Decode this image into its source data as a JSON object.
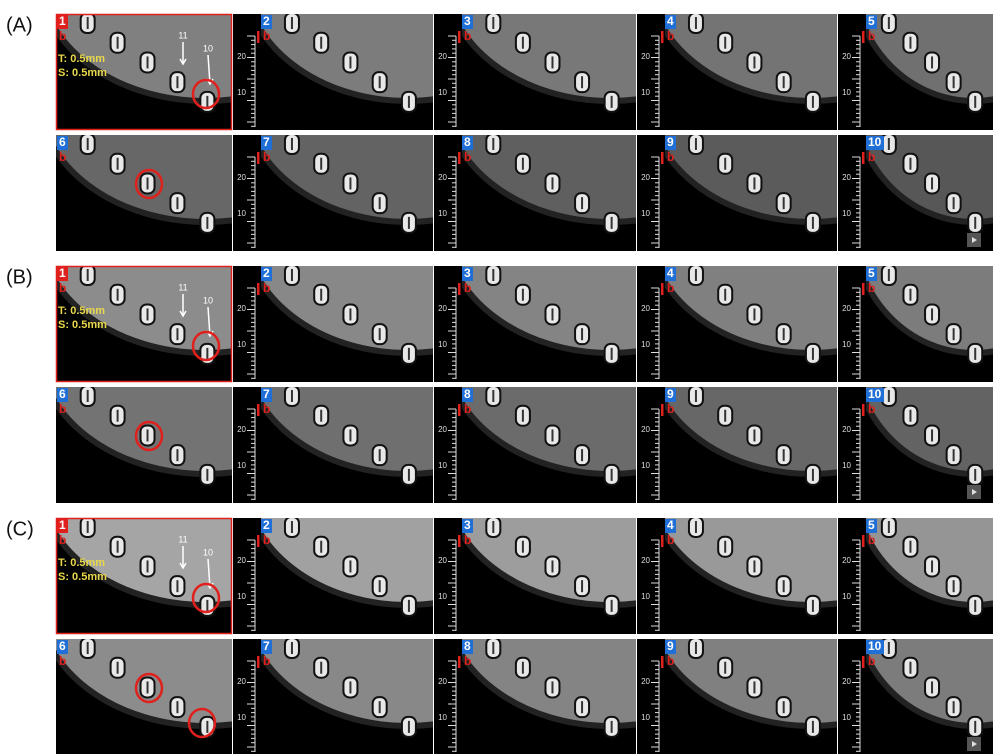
{
  "groups": [
    {
      "label": "(A)",
      "panels": [
        {
          "number": "1",
          "tag": "b",
          "thickness": "T: 0.5mm",
          "spacing": "S: 0.5mm",
          "arrows": [
            "11",
            "10"
          ]
        },
        {
          "number": "2",
          "tag": "b"
        },
        {
          "number": "3",
          "tag": "b"
        },
        {
          "number": "4",
          "tag": "b"
        },
        {
          "number": "5",
          "tag": "b"
        },
        {
          "number": "6",
          "tag": "b"
        },
        {
          "number": "7",
          "tag": "b"
        },
        {
          "number": "8",
          "tag": "b"
        },
        {
          "number": "9",
          "tag": "b"
        },
        {
          "number": "10",
          "tag": "b"
        }
      ]
    },
    {
      "label": "(B)",
      "panels": [
        {
          "number": "1",
          "tag": "b",
          "thickness": "T: 0.5mm",
          "spacing": "S: 0.5mm",
          "arrows": [
            "11",
            "10"
          ]
        },
        {
          "number": "2",
          "tag": "b"
        },
        {
          "number": "3",
          "tag": "b"
        },
        {
          "number": "4",
          "tag": "b"
        },
        {
          "number": "5",
          "tag": "b"
        },
        {
          "number": "6",
          "tag": "b"
        },
        {
          "number": "7",
          "tag": "b"
        },
        {
          "number": "8",
          "tag": "b"
        },
        {
          "number": "9",
          "tag": "b"
        },
        {
          "number": "10",
          "tag": "b"
        }
      ]
    },
    {
      "label": "(C)",
      "panels": [
        {
          "number": "1",
          "tag": "b",
          "thickness": "T: 0.5mm",
          "spacing": "S: 0.5mm",
          "arrows": [
            "11",
            "10"
          ]
        },
        {
          "number": "2",
          "tag": "b"
        },
        {
          "number": "3",
          "tag": "b"
        },
        {
          "number": "4",
          "tag": "b"
        },
        {
          "number": "5",
          "tag": "b"
        },
        {
          "number": "6",
          "tag": "b"
        },
        {
          "number": "7",
          "tag": "b"
        },
        {
          "number": "8",
          "tag": "b"
        },
        {
          "number": "9",
          "tag": "b"
        },
        {
          "number": "10",
          "tag": "b"
        }
      ]
    }
  ],
  "ruler_labels": [
    "20",
    "10"
  ]
}
